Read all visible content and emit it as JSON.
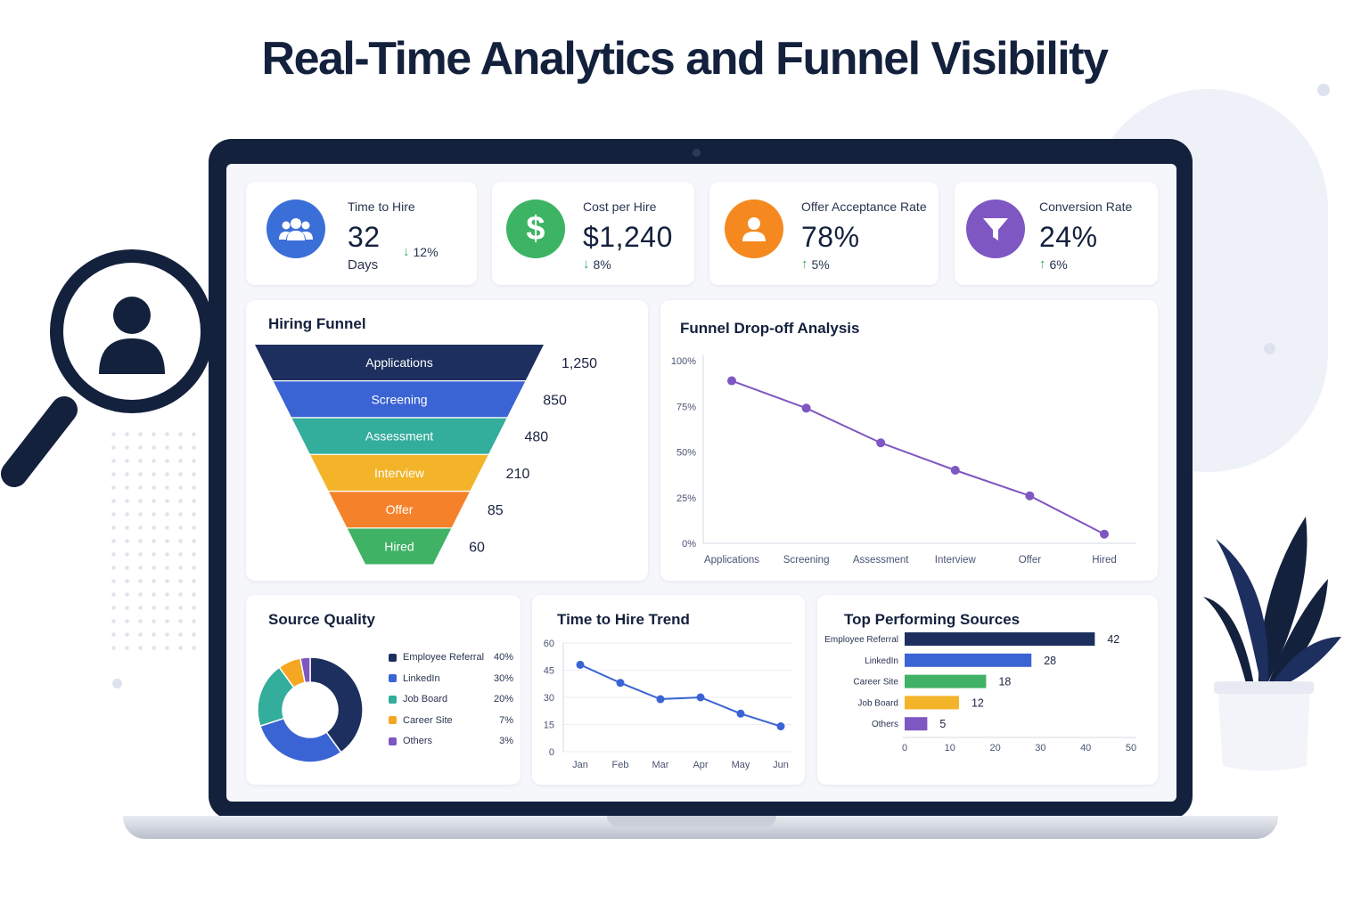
{
  "headline": "Real-Time Analytics and Funnel Visibility",
  "kpis": [
    {
      "label": "Time to Hire",
      "value": "32",
      "unit": "Days",
      "trend": "12%",
      "direction": "down",
      "icon": "users-icon",
      "color": "#3b6fd8"
    },
    {
      "label": "Cost per Hire",
      "value": "$1,240",
      "unit": "",
      "trend": "8%",
      "direction": "down",
      "icon": "dollar-icon",
      "color": "#3cb464"
    },
    {
      "label": "Offer Acceptance Rate",
      "value": "78%",
      "unit": "",
      "trend": "5%",
      "direction": "up",
      "icon": "person-icon",
      "color": "#f5891f"
    },
    {
      "label": "Conversion Rate",
      "value": "24%",
      "unit": "",
      "trend": "6%",
      "direction": "up",
      "icon": "funnel-icon",
      "color": "#7e57c2"
    }
  ],
  "funnel": {
    "title": "Hiring Funnel",
    "stages": [
      {
        "label": "Applications",
        "value": "1,250",
        "color": "#1d2f5e"
      },
      {
        "label": "Screening",
        "value": "850",
        "color": "#3a63d4"
      },
      {
        "label": "Assessment",
        "value": "480",
        "color": "#33ad9c"
      },
      {
        "label": "Interview",
        "value": "210",
        "color": "#f3b429"
      },
      {
        "label": "Offer",
        "value": "85",
        "color": "#f5822a"
      },
      {
        "label": "Hired",
        "value": "60",
        "color": "#3fb266"
      }
    ]
  },
  "chart_data": [
    {
      "type": "line",
      "title": "Funnel Drop-off Analysis",
      "categories": [
        "Applications",
        "Screening",
        "Assessment",
        "Interview",
        "Offer",
        "Hired"
      ],
      "values": [
        89,
        74,
        55,
        40,
        26,
        5
      ],
      "ylim": [
        0,
        100
      ],
      "yticks": [
        "0%",
        "25%",
        "50%",
        "75%",
        "100%"
      ],
      "color": "#7e57c2",
      "grid": false
    },
    {
      "type": "pie",
      "title": "Source Quality",
      "categories": [
        "Employee Referral",
        "LinkedIn",
        "Job Board",
        "Career Site",
        "Others"
      ],
      "values": [
        40,
        30,
        20,
        7,
        3
      ],
      "labels": [
        "40%",
        "30%",
        "20%",
        "7%",
        "3%"
      ],
      "colors": [
        "#1d2f5e",
        "#3a63d4",
        "#33ad9c",
        "#f5a623",
        "#7e57c2"
      ],
      "legend": "right"
    },
    {
      "type": "line",
      "title": "Time to Hire Trend",
      "categories": [
        "Jan",
        "Feb",
        "Mar",
        "Apr",
        "May",
        "Jun"
      ],
      "values": [
        48,
        38,
        29,
        30,
        21,
        14
      ],
      "ylim": [
        0,
        60
      ],
      "yticks": [
        "0",
        "15",
        "30",
        "45",
        "60"
      ],
      "color": "#3a63d4",
      "grid": true
    },
    {
      "type": "bar",
      "orientation": "horizontal",
      "title": "Top Performing Sources",
      "categories": [
        "Employee Referral",
        "LinkedIn",
        "Career Site",
        "Job Board",
        "Others"
      ],
      "values": [
        42,
        28,
        18,
        12,
        5
      ],
      "colors": [
        "#1d2f5e",
        "#3a63d4",
        "#3fb266",
        "#f3b429",
        "#7e57c2"
      ],
      "xlim": [
        0,
        50
      ],
      "xticks": [
        "0",
        "10",
        "20",
        "30",
        "40",
        "50"
      ]
    }
  ]
}
